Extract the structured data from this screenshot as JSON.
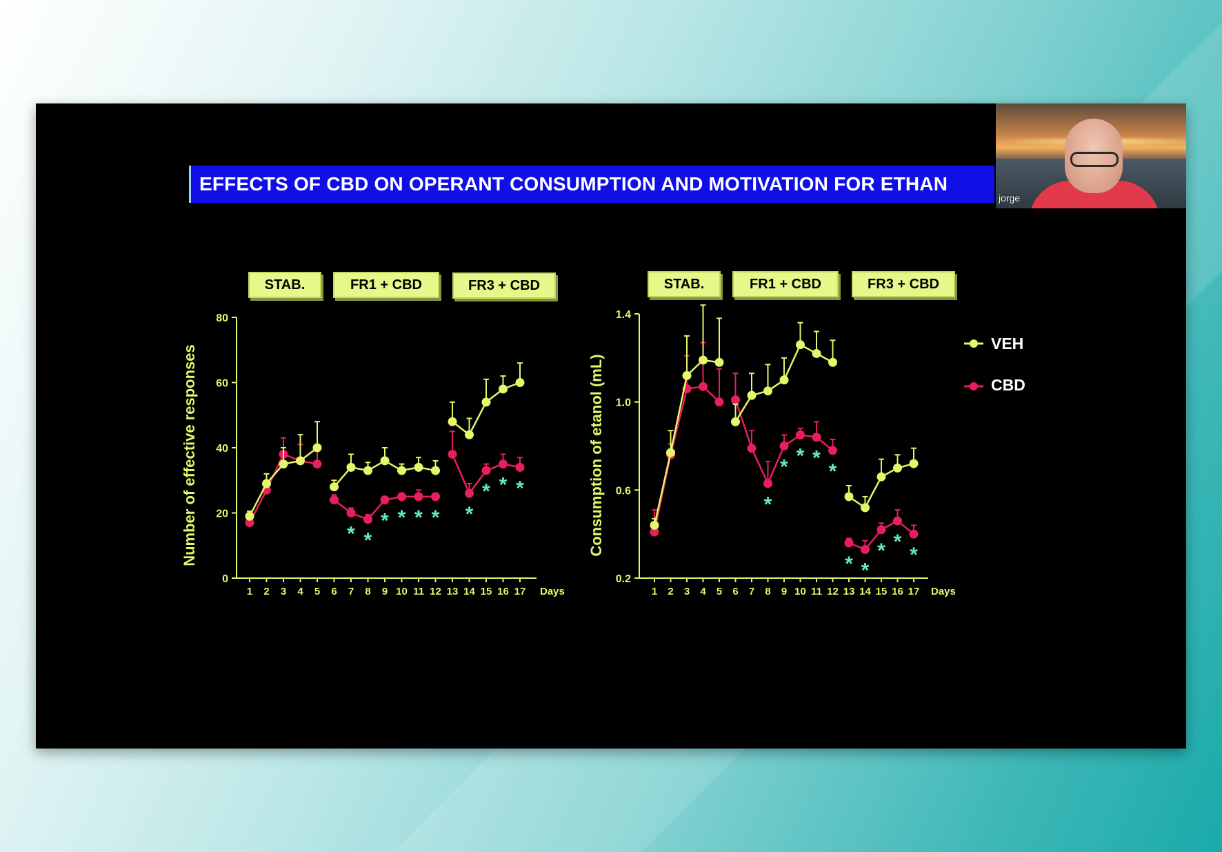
{
  "slide": {
    "title": "EFFECTS OF CBD ON OPERANT CONSUMPTION AND MOTIVATION FOR ETHAN"
  },
  "video_overlay": {
    "participant_name": "jorge"
  },
  "colors": {
    "veh": "#e6f56a",
    "cbd": "#e8205a",
    "asterisk": "#66e8c0",
    "axis": "#e6f56a",
    "title_bar": "#1010e6",
    "phase_box": "#e8f78a"
  },
  "phases": [
    "STAB.",
    "FR1 + CBD",
    "FR3 + CBD"
  ],
  "legend": [
    {
      "name": "VEH",
      "color": "#e6f56a"
    },
    {
      "name": "CBD",
      "color": "#e8205a"
    }
  ],
  "chart_data": [
    {
      "type": "line",
      "ylabel": "Number of effective responses",
      "xlabel": "Days",
      "ylim": [
        0,
        80
      ],
      "yticks": [
        "0",
        "20",
        "40",
        "60",
        "80"
      ],
      "x": [
        1,
        2,
        3,
        4,
        5,
        6,
        7,
        8,
        9,
        10,
        11,
        12,
        13,
        14,
        15,
        16,
        17
      ],
      "segments": [
        [
          1,
          5
        ],
        [
          6,
          12
        ],
        [
          13,
          17
        ]
      ],
      "series": [
        {
          "name": "VEH",
          "values": [
            19,
            29,
            35,
            36,
            40,
            28,
            34,
            33,
            36,
            33,
            34,
            33,
            48,
            44,
            54,
            58,
            60
          ],
          "errors": [
            1.5,
            3,
            5,
            8,
            8,
            2,
            4,
            2.5,
            4,
            2,
            3,
            3,
            6,
            5,
            7,
            4,
            6
          ]
        },
        {
          "name": "CBD",
          "values": [
            17,
            27,
            38,
            36,
            35,
            24,
            20,
            18,
            24,
            25,
            25,
            25,
            38,
            26,
            33,
            35,
            34
          ],
          "errors": [
            3.5,
            2,
            5,
            5,
            5,
            1.5,
            1.5,
            1.5,
            1,
            1,
            2,
            1,
            7,
            3,
            2,
            3,
            3
          ]
        }
      ],
      "significant_days": [
        7,
        8,
        9,
        10,
        11,
        12,
        14,
        15,
        16,
        17
      ]
    },
    {
      "type": "line",
      "ylabel": "Consumption  of etanol  (mL)",
      "xlabel": "Days",
      "ylim": [
        0.2,
        1.4
      ],
      "yticks": [
        "0.2",
        "0.6",
        "1.0",
        "1.4"
      ],
      "x": [
        1,
        2,
        3,
        4,
        5,
        6,
        7,
        8,
        9,
        10,
        11,
        12,
        13,
        14,
        15,
        16,
        17
      ],
      "segments": [
        [
          1,
          5
        ],
        [
          6,
          12
        ],
        [
          13,
          17
        ]
      ],
      "series": [
        {
          "name": "VEH",
          "values": [
            0.44,
            0.77,
            1.12,
            1.19,
            1.18,
            0.91,
            1.03,
            1.05,
            1.1,
            1.26,
            1.22,
            1.18,
            0.57,
            0.52,
            0.66,
            0.7,
            0.72
          ],
          "errors": [
            0.03,
            0.1,
            0.18,
            0.25,
            0.2,
            0.08,
            0.1,
            0.12,
            0.1,
            0.1,
            0.1,
            0.1,
            0.05,
            0.05,
            0.08,
            0.06,
            0.07
          ]
        },
        {
          "name": "CBD",
          "values": [
            0.41,
            0.76,
            1.06,
            1.07,
            1.0,
            1.01,
            0.79,
            0.63,
            0.8,
            0.85,
            0.84,
            0.78,
            0.36,
            0.33,
            0.42,
            0.46,
            0.4
          ],
          "errors": [
            0.1,
            0.05,
            0.15,
            0.2,
            0.15,
            0.12,
            0.08,
            0.1,
            0.05,
            0.03,
            0.07,
            0.05,
            0.02,
            0.04,
            0.03,
            0.05,
            0.04
          ]
        }
      ],
      "significant_days": [
        8,
        9,
        10,
        11,
        12,
        13,
        14,
        15,
        16,
        17
      ]
    }
  ]
}
